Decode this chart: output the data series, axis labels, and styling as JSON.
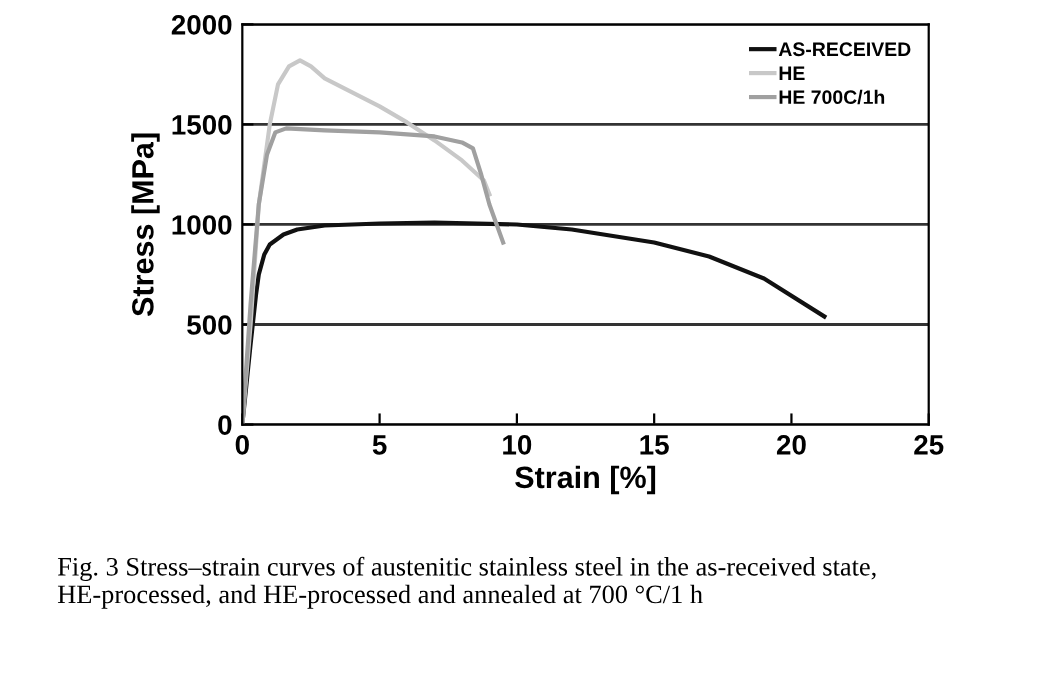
{
  "chart_data": {
    "type": "line",
    "xlabel": "Strain [%]",
    "ylabel": "Stress [MPa]",
    "xlim": [
      0,
      25
    ],
    "xticks": [
      0,
      5,
      10,
      15,
      20,
      25
    ],
    "ylim": [
      0,
      2000
    ],
    "yticks": [
      0,
      500,
      1000,
      1500,
      2000
    ],
    "grid": "y",
    "legend": "top right",
    "marker": "none",
    "line_style": "solid",
    "annotations": [
      "Fig. 3 Stress–strain curves of austenitic stainless steel in the as-received state, HE-processed, and HE-processed and annealed at 700 °C/1 h"
    ],
    "series": [
      {
        "name": "AS-RECEIVED",
        "color": "#111111",
        "x": [
          0,
          0.3,
          0.5,
          0.6,
          0.8,
          1,
          1.5,
          2,
          3,
          5,
          7,
          10,
          12,
          15,
          17,
          19,
          21.2
        ],
        "values": [
          0,
          400,
          650,
          750,
          850,
          900,
          950,
          975,
          995,
          1005,
          1010,
          1000,
          975,
          910,
          840,
          730,
          540
        ]
      },
      {
        "name": "HE",
        "color": "#c8c8c8",
        "x": [
          0,
          0.3,
          0.6,
          1,
          1.3,
          1.7,
          2.1,
          2.5,
          3,
          4,
          5,
          6,
          7,
          8,
          8.8,
          9
        ],
        "values": [
          0,
          500,
          1100,
          1500,
          1700,
          1790,
          1820,
          1790,
          1730,
          1660,
          1590,
          1510,
          1420,
          1320,
          1220,
          1150
        ]
      },
      {
        "name": "HE 700C/1h",
        "color": "#a0a0a0",
        "x": [
          0,
          0.3,
          0.6,
          0.9,
          1.2,
          1.6,
          3,
          5,
          7,
          8,
          8.4,
          8.7,
          9,
          9.5
        ],
        "values": [
          0,
          600,
          1100,
          1350,
          1460,
          1480,
          1470,
          1460,
          1440,
          1410,
          1380,
          1250,
          1100,
          910
        ]
      }
    ]
  }
}
